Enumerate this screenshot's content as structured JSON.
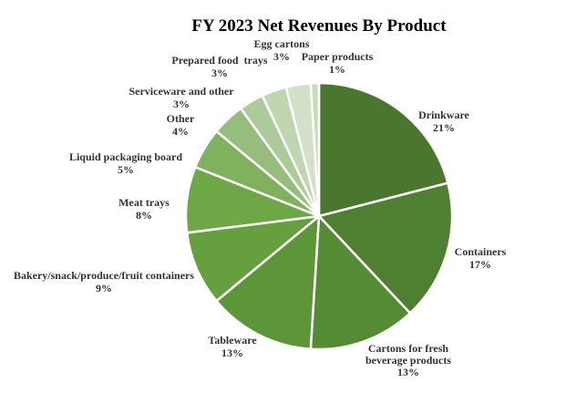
{
  "chart_data": {
    "type": "pie",
    "title": "FY 2023 Net Revenues By Product",
    "start_angle_deg": 0,
    "direction": "clockwise",
    "slices": [
      {
        "key": "drinkware",
        "name": "Drinkware",
        "value": 21,
        "pct_label": "21%",
        "color": "#4a772d"
      },
      {
        "key": "containers",
        "name": "Containers",
        "value": 17,
        "pct_label": "17%",
        "color": "#4f7f31"
      },
      {
        "key": "cartons",
        "name": "Cartons for fresh beverage products",
        "name_lines": [
          "Cartons for fresh",
          "beverage products"
        ],
        "value": 13,
        "pct_label": "13%",
        "color": "#568b35"
      },
      {
        "key": "tableware",
        "name": "Tableware",
        "value": 13,
        "pct_label": "13%",
        "color": "#5d9639"
      },
      {
        "key": "bakery",
        "name": "Bakery/snack/produce/fruit containers",
        "value": 9,
        "pct_label": "9%",
        "color": "#659f3e"
      },
      {
        "key": "meat",
        "name": "Meat trays",
        "value": 8,
        "pct_label": "8%",
        "color": "#6ea846"
      },
      {
        "key": "liquid",
        "name": "Liquid packaging board",
        "value": 5,
        "pct_label": "5%",
        "color": "#80b15f"
      },
      {
        "key": "other",
        "name": "Other",
        "value": 4,
        "pct_label": "4%",
        "color": "#96bd7d"
      },
      {
        "key": "serviceware",
        "name": "Serviceware and other",
        "value": 3,
        "pct_label": "3%",
        "color": "#adcb9a"
      },
      {
        "key": "prepared",
        "name": "Prepared food  trays",
        "value": 3,
        "pct_label": "3%",
        "color": "#bfd6b0"
      },
      {
        "key": "egg",
        "name": "Egg cartons",
        "value": 3,
        "pct_label": "3%",
        "color": "#d2e1c8"
      },
      {
        "key": "paper",
        "name": "Paper products",
        "value": 1,
        "pct_label": "1%",
        "color": "#c8dbbc"
      }
    ]
  }
}
